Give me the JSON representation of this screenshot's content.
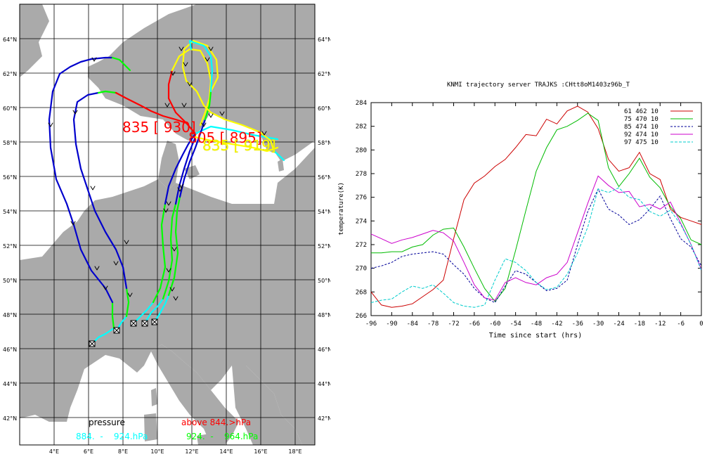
{
  "map": {
    "lat_labels": [
      "64°N",
      "62°N",
      "60°N",
      "58°N",
      "56°N",
      "54°N",
      "52°N",
      "50°N",
      "48°N",
      "46°N",
      "44°N",
      "42°N"
    ],
    "lon_labels": [
      "4°E",
      "6°E",
      "8°E",
      "10°E",
      "12°E",
      "14°E",
      "16°E",
      "18°E"
    ],
    "pressure_labels": [
      {
        "text": "835 [ 930]",
        "color": "#ff0000"
      },
      {
        "text": "805 [ 895]",
        "color": "#ff0000"
      },
      {
        "text": "835 [ 919]",
        "color": "#ffff00"
      }
    ],
    "legend": {
      "title": "pressure",
      "above": "above  844.>hPa",
      "cyan_range": "884.  -    924.hPa",
      "green_range": "924.  -    964.hPa",
      "colors": {
        "above": "#ff0000",
        "cyan": "#00ffff",
        "green": "#00ff00",
        "yellow": "#ffff00",
        "blue": "#0000cc"
      }
    }
  },
  "chart_data": {
    "type": "line",
    "title": "KNMI trajectory server TRAJKS :CHtt8oM1403z96b_T",
    "xlabel": "Time since start (hrs)",
    "ylabel": "temperature(K)",
    "xlim": [
      -96,
      0
    ],
    "ylim": [
      266,
      284
    ],
    "x_ticks": [
      "-96",
      "-90",
      "-84",
      "-78",
      "-72",
      "-66",
      "-60",
      "-54",
      "-48",
      "-42",
      "-36",
      "-30",
      "-24",
      "-18",
      "-12",
      "-6",
      "0"
    ],
    "y_ticks": [
      "266",
      "268",
      "270",
      "272",
      "274",
      "276",
      "278",
      "280",
      "282",
      "284"
    ],
    "legend_position": "top-right",
    "series": [
      {
        "name": "61 462 10",
        "color": "#cc0000",
        "x": [
          -96,
          -93,
          -90,
          -87,
          -84,
          -81,
          -78,
          -75,
          -72,
          -69,
          -66,
          -63,
          -60,
          -57,
          -54,
          -51,
          -48,
          -45,
          -42,
          -39,
          -36,
          -33,
          -30,
          -27,
          -24,
          -21,
          -18,
          -15,
          -12,
          -9,
          -6,
          -3,
          0
        ],
        "y": [
          268.0,
          266.9,
          266.7,
          266.8,
          267.0,
          267.6,
          268.2,
          269.0,
          272.5,
          275.8,
          277.2,
          277.8,
          278.6,
          279.2,
          280.2,
          281.3,
          281.2,
          282.6,
          282.2,
          283.3,
          283.7,
          283.2,
          281.8,
          279.2,
          278.2,
          278.5,
          279.8,
          278.0,
          277.5,
          275.0,
          274.3,
          274.0,
          273.7
        ]
      },
      {
        "name": "75 470 10",
        "color": "#00bb00",
        "x": [
          -96,
          -93,
          -90,
          -87,
          -84,
          -81,
          -78,
          -75,
          -72,
          -69,
          -66,
          -63,
          -60,
          -57,
          -54,
          -51,
          -48,
          -45,
          -42,
          -39,
          -36,
          -33,
          -30,
          -27,
          -24,
          -21,
          -18,
          -15,
          -12,
          -9,
          -6,
          -3,
          0
        ],
        "y": [
          271.3,
          271.3,
          271.4,
          271.4,
          271.8,
          272.0,
          272.8,
          273.3,
          273.4,
          271.8,
          270.0,
          268.3,
          267.2,
          268.3,
          271.5,
          274.9,
          278.2,
          280.2,
          281.7,
          282.0,
          282.5,
          283.1,
          282.5,
          278.5,
          276.9,
          278.0,
          279.3,
          277.7,
          276.8,
          275.2,
          274.2,
          272.4,
          272.0
        ]
      },
      {
        "name": "85 474 10",
        "color": "#000099",
        "x": [
          -96,
          -93,
          -90,
          -87,
          -84,
          -81,
          -78,
          -75,
          -72,
          -69,
          -66,
          -63,
          -60,
          -57,
          -54,
          -51,
          -48,
          -45,
          -42,
          -39,
          -36,
          -33,
          -30,
          -27,
          -24,
          -21,
          -18,
          -15,
          -12,
          -9,
          -6,
          -3,
          0
        ],
        "y": [
          270.0,
          270.2,
          270.5,
          271.0,
          271.2,
          271.3,
          271.4,
          271.2,
          270.3,
          269.5,
          268.3,
          267.5,
          267.1,
          268.5,
          269.8,
          269.5,
          268.8,
          268.1,
          268.3,
          269.0,
          272.0,
          274.8,
          276.7,
          275.0,
          274.5,
          273.7,
          274.1,
          275.0,
          276.1,
          274.2,
          272.5,
          271.8,
          270.2
        ]
      },
      {
        "name": "92 474 10",
        "color": "#cc00cc",
        "x": [
          -96,
          -93,
          -90,
          -87,
          -84,
          -81,
          -78,
          -75,
          -72,
          -69,
          -66,
          -63,
          -60,
          -57,
          -54,
          -51,
          -48,
          -45,
          -42,
          -39,
          -36,
          -33,
          -30,
          -27,
          -24,
          -21,
          -18,
          -15,
          -12,
          -9,
          -6,
          -3,
          0
        ],
        "y": [
          272.9,
          272.5,
          272.1,
          272.4,
          272.6,
          272.9,
          273.2,
          273.0,
          272.3,
          270.5,
          268.6,
          267.5,
          267.3,
          268.8,
          269.2,
          268.8,
          268.6,
          269.2,
          269.5,
          270.5,
          273.0,
          275.5,
          277.8,
          277.0,
          276.4,
          276.5,
          275.2,
          275.4,
          275.0,
          275.6,
          273.8,
          272.0,
          269.9
        ]
      },
      {
        "name": "97 475 10",
        "color": "#00cccc",
        "x": [
          -96,
          -93,
          -90,
          -87,
          -84,
          -81,
          -78,
          -75,
          -72,
          -69,
          -66,
          -63,
          -60,
          -57,
          -54,
          -51,
          -48,
          -45,
          -42,
          -39,
          -36,
          -33,
          -30,
          -27,
          -24,
          -21,
          -18,
          -15,
          -12,
          -9,
          -6,
          -3,
          0
        ],
        "y": [
          267.1,
          267.3,
          267.4,
          268.0,
          268.5,
          268.3,
          268.6,
          267.9,
          267.1,
          266.8,
          266.7,
          266.9,
          269.0,
          270.8,
          270.5,
          269.8,
          268.8,
          268.2,
          268.4,
          269.5,
          271.3,
          273.5,
          276.7,
          276.4,
          276.8,
          276.0,
          275.8,
          274.8,
          274.4,
          274.9,
          273.7,
          272.0,
          269.8
        ]
      }
    ]
  }
}
